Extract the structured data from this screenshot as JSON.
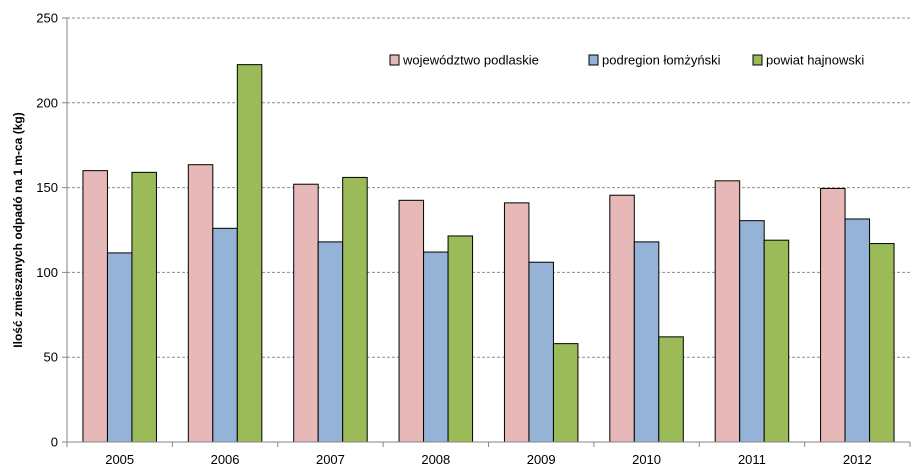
{
  "chart_data": {
    "type": "bar",
    "categories": [
      "2005",
      "2006",
      "2007",
      "2008",
      "2009",
      "2010",
      "2011",
      "2012"
    ],
    "series": [
      {
        "name": "województwo podlaskie",
        "color": "#e6b9b8",
        "values": [
          160,
          163.5,
          152,
          142.5,
          141,
          145.5,
          154,
          149.5
        ]
      },
      {
        "name": "podregion łomżyński",
        "color": "#95b3d7",
        "values": [
          111.5,
          126,
          118,
          112,
          106,
          118,
          130.5,
          131.5
        ]
      },
      {
        "name": "powiat hajnowski",
        "color": "#9bbb59",
        "values": [
          159,
          222.5,
          156,
          121.5,
          58,
          62,
          119,
          117
        ]
      }
    ],
    "ylabel": "Ilość zmieszanych odpadó na 1 m-ca (kg)",
    "xlabel": "",
    "title": "",
    "ylim": [
      0,
      250
    ],
    "yticks": [
      0,
      50,
      100,
      150,
      200,
      250
    ],
    "grid": true,
    "grid_style": "dashed",
    "legend_position": "top-right"
  }
}
